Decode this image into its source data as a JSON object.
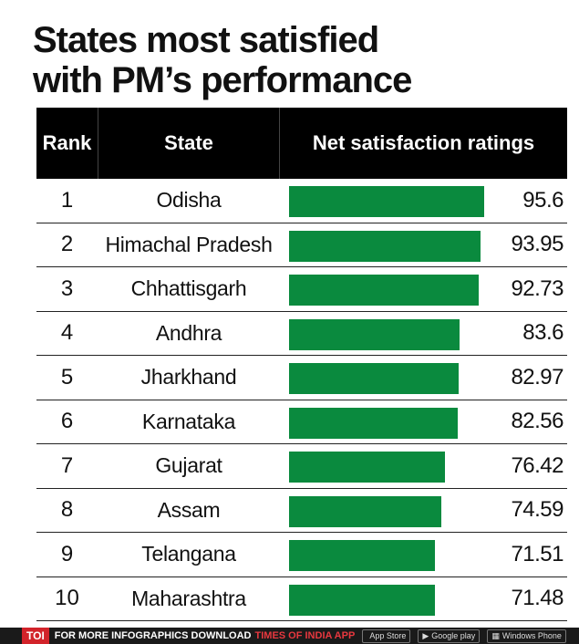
{
  "title_lines": [
    "States most satisfied",
    "with PM’s performance"
  ],
  "chart_data": {
    "type": "table",
    "columns": [
      "Rank",
      "State",
      "Net satisfaction ratings"
    ],
    "xlim": [
      0,
      100
    ],
    "bar_color": "#0a8a3e",
    "rows": [
      {
        "rank": "1",
        "state": "Odisha",
        "value": 95.6,
        "label": "95.6"
      },
      {
        "rank": "2",
        "state": "Himachal Pradesh",
        "value": 93.95,
        "label": "93.95"
      },
      {
        "rank": "3",
        "state": "Chhattisgarh",
        "value": 92.73,
        "label": "92.73"
      },
      {
        "rank": "4",
        "state": "Andhra",
        "value": 83.6,
        "label": "83.6"
      },
      {
        "rank": "5",
        "state": "Jharkhand",
        "value": 82.97,
        "label": "82.97"
      },
      {
        "rank": "6",
        "state": "Karnataka",
        "value": 82.56,
        "label": "82.56"
      },
      {
        "rank": "7",
        "state": "Gujarat",
        "value": 76.42,
        "label": "76.42"
      },
      {
        "rank": "8",
        "state": "Assam",
        "value": 74.59,
        "label": "74.59"
      },
      {
        "rank": "9",
        "state": "Telangana",
        "value": 71.51,
        "label": "71.51"
      },
      {
        "rank": "10",
        "state": "Maharashtra",
        "value": 71.48,
        "label": "71.48"
      }
    ]
  },
  "footer": {
    "logo": "TOI",
    "text": "FOR MORE INFOGRAPHICS DOWNLOAD",
    "accent": "TIMES OF INDIA APP",
    "badges": [
      {
        "icon": "apple-icon",
        "glyph": "",
        "label": "App Store"
      },
      {
        "icon": "google-play-icon",
        "glyph": "▶",
        "label": "Google play"
      },
      {
        "icon": "windows-icon",
        "glyph": "▦",
        "label": "Windows Phone"
      }
    ]
  }
}
